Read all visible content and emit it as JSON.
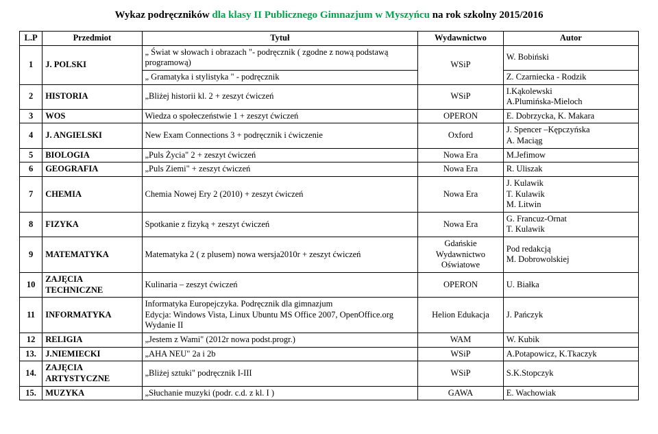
{
  "title": {
    "part1": "Wykaz podręczników ",
    "part2": "dla klasy II Publicznego Gimnazjum w Myszyńcu ",
    "part3": "na rok szkolny 2015/2016"
  },
  "headers": {
    "lp": "L.P",
    "przedmiot": "Przedmiot",
    "tytul": "Tytuł",
    "wydawnictwo": "Wydawnictwo",
    "autor": "Autor"
  },
  "rows": [
    {
      "lp": "1",
      "subject": "J. POLSKI",
      "titles": [
        "„ Świat w słowach i obrazach \"- podręcznik ( zgodne z nową podstawą programową)",
        "„ Gramatyka i stylistyka \" - podręcznik"
      ],
      "publisher": "WSiP",
      "authors": [
        "W. Bobiński",
        "Z. Czarniecka - Rodzik"
      ]
    },
    {
      "lp": "2",
      "subject": "HISTORIA",
      "titles": [
        "„Bliżej historii kl. 2 + zeszyt ćwiczeń"
      ],
      "publisher": "WSiP",
      "authors": [
        "I.Kąkolewski\nA.Plumińska-Mieloch"
      ]
    },
    {
      "lp": "3",
      "subject": "WOS",
      "titles": [
        "Wiedza o społeczeństwie 1 + zeszyt ćwiczeń"
      ],
      "publisher": "OPERON",
      "authors": [
        "E. Dobrzycka, K. Makara"
      ]
    },
    {
      "lp": "4",
      "subject": "J. ANGIELSKI",
      "titles": [
        "New Exam Connections 3 + podręcznik i ćwiczenie"
      ],
      "publisher": "Oxford",
      "authors": [
        "J. Spencer –Kępczyńska\nA. Maciąg"
      ]
    },
    {
      "lp": "5",
      "subject": "BIOLOGIA",
      "titles": [
        "„Puls Życia\" 2 + zeszyt ćwiczeń"
      ],
      "publisher": "Nowa Era",
      "authors": [
        "M.Jefimow"
      ]
    },
    {
      "lp": "6",
      "subject": "GEOGRAFIA",
      "titles": [
        "„Puls Ziemi\" + zeszyt ćwiczeń"
      ],
      "publisher": "Nowa Era",
      "authors": [
        "R. Uliszak"
      ]
    },
    {
      "lp": "7",
      "subject": "CHEMIA",
      "titles": [
        "Chemia Nowej Ery 2 (2010) + zeszyt ćwiczeń"
      ],
      "publisher": "Nowa Era",
      "authors": [
        "J. Kulawik\nT. Kulawik\n M. Litwin"
      ]
    },
    {
      "lp": "8",
      "subject": "FIZYKA",
      "titles": [
        "Spotkanie z fizyką + zeszyt ćwiczeń"
      ],
      "publisher": "Nowa Era",
      "authors": [
        "G. Francuz-Ornat\nT. Kulawik"
      ]
    },
    {
      "lp": "9",
      "subject": "MATEMATYKA",
      "titles": [
        "Matematyka 2 ( z plusem) nowa wersja2010r  + zeszyt ćwiczeń"
      ],
      "publisher": "Gdańskie Wydawnictwo Oświatowe",
      "authors": [
        "Pod redakcją\nM. Dobrowolskiej"
      ]
    },
    {
      "lp": "10",
      "subject": "ZAJĘCIA TECHNICZNE",
      "titles": [
        "Kulinaria – zeszyt ćwiczeń"
      ],
      "publisher": "OPERON",
      "authors": [
        "U. Białka"
      ]
    },
    {
      "lp": "11",
      "subject": "INFORMATYKA",
      "titles": [
        "Informatyka Europejczyka. Podręcznik dla gimnazjum\n Edycja: Windows Vista, Linux Ubuntu  MS Office 2007, OpenOffice.org  Wydanie II"
      ],
      "publisher": "Helion Edukacja",
      "authors": [
        "J.  Pańczyk"
      ]
    },
    {
      "lp": "12",
      "subject": "RELIGIA",
      "titles": [
        "„Jestem z Wami\" (2012r nowa podst.progr.)"
      ],
      "publisher": "WAM",
      "authors": [
        "W. Kubik"
      ]
    },
    {
      "lp": "13.",
      "subject": "J.NIEMIECKI",
      "titles": [
        "„AHA NEU\" 2a i 2b"
      ],
      "publisher": "WSiP",
      "authors": [
        "A.Potapowicz, K.Tkaczyk"
      ]
    },
    {
      "lp": "14.",
      "subject": "ZAJĘCIA ARTYSTYCZNE",
      "titles": [
        "„Bliżej sztuki\" podręcznik I-III"
      ],
      "publisher": "WSiP",
      "authors": [
        "S.K.Stopczyk"
      ]
    },
    {
      "lp": "15.",
      "subject": "MUZYKA",
      "titles": [
        "„Słuchanie muzyki (podr. c.d. z kl. I )"
      ],
      "publisher": "GAWA",
      "authors": [
        "E. Wachowiak"
      ]
    }
  ]
}
